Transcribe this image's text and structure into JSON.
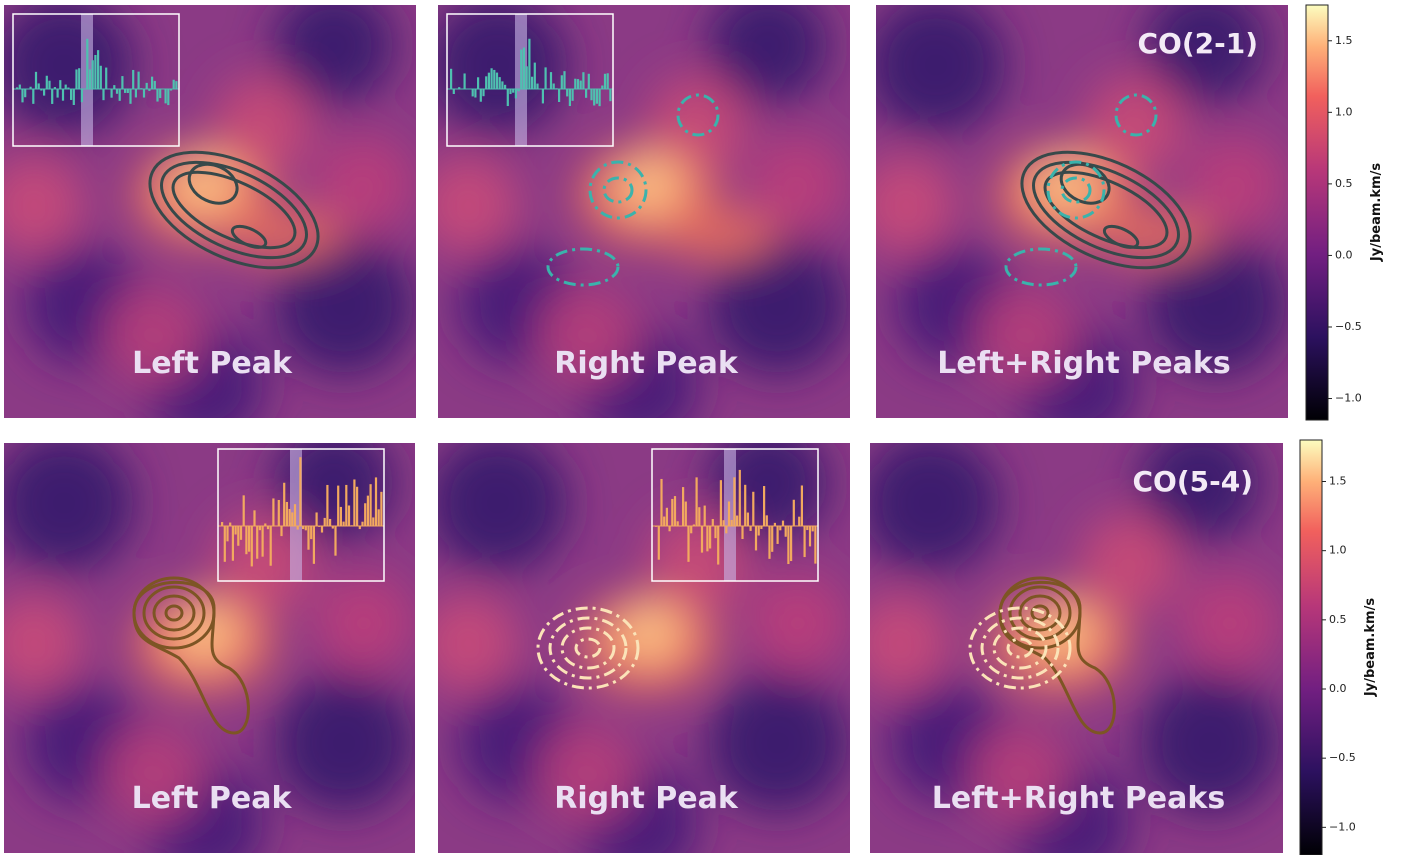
{
  "panels": [
    {
      "label": "Left Peak"
    },
    {
      "label": "Right Peak"
    },
    {
      "label": "Left+Right Peaks",
      "line": "CO(2-1)"
    },
    {
      "label": "Left Peak"
    },
    {
      "label": "Right Peak"
    },
    {
      "label": "Left+Right Peaks",
      "line": "CO(5-4)"
    }
  ],
  "colorbars": [
    {
      "label": "Jy/beam.km/s",
      "lim": [
        -1.15,
        1.75
      ],
      "ticks": [
        {
          "value": -1.0,
          "label": "−1.0"
        },
        {
          "value": -0.5,
          "label": "−0.5"
        },
        {
          "value": 0.0,
          "label": "0.0"
        },
        0.5,
        {
          "value": 1.0,
          "label": "1.0"
        },
        1.5
      ]
    },
    {
      "label": "Jy/beam.km/s",
      "lim": [
        -1.2,
        1.8
      ],
      "ticks": [
        {
          "value": -1.0,
          "label": "−1.0"
        },
        {
          "value": -0.5,
          "label": "−0.5"
        },
        {
          "value": 0.0,
          "label": "0.0"
        },
        0.5,
        {
          "value": 1.0,
          "label": "1.0"
        },
        1.5
      ]
    }
  ]
}
